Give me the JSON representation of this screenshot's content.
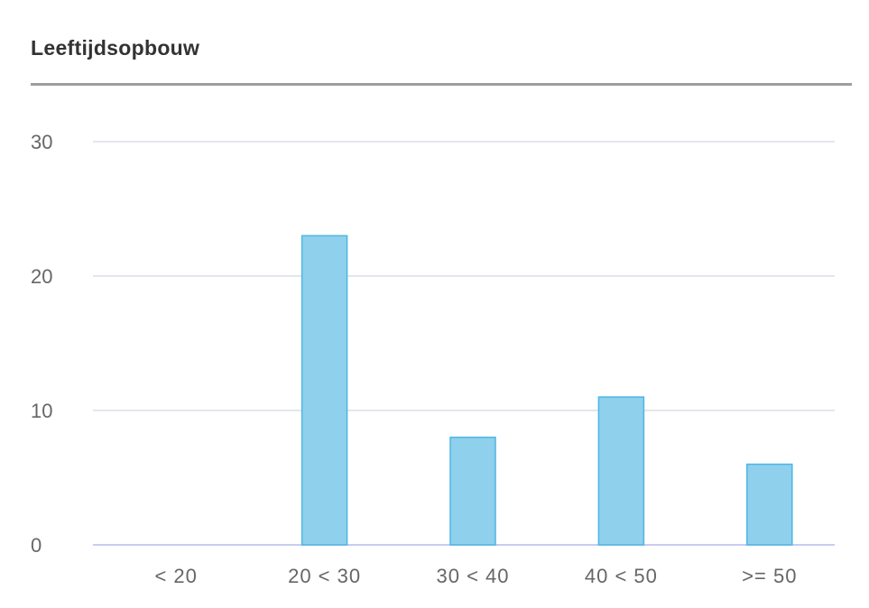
{
  "widget": {
    "title": "Leeftijdsopbouw"
  },
  "colors": {
    "bar_fill": "#8fd0ec",
    "bar_stroke": "#4fb6e3",
    "grid": "#e3e7ec",
    "baseline": "#c9cdee",
    "title_rule": "#9e9e9e"
  },
  "chart_data": {
    "type": "bar",
    "title": "Leeftijdsopbouw",
    "xlabel": "",
    "ylabel": "",
    "categories": [
      "< 20",
      "20 < 30",
      "30 < 40",
      "40 < 50",
      ">= 50"
    ],
    "values": [
      0,
      23,
      8,
      11,
      6
    ],
    "ylim": [
      0,
      30
    ],
    "yticks": [
      "0",
      "10",
      "20",
      "30"
    ],
    "grid": true,
    "legend": "none"
  }
}
